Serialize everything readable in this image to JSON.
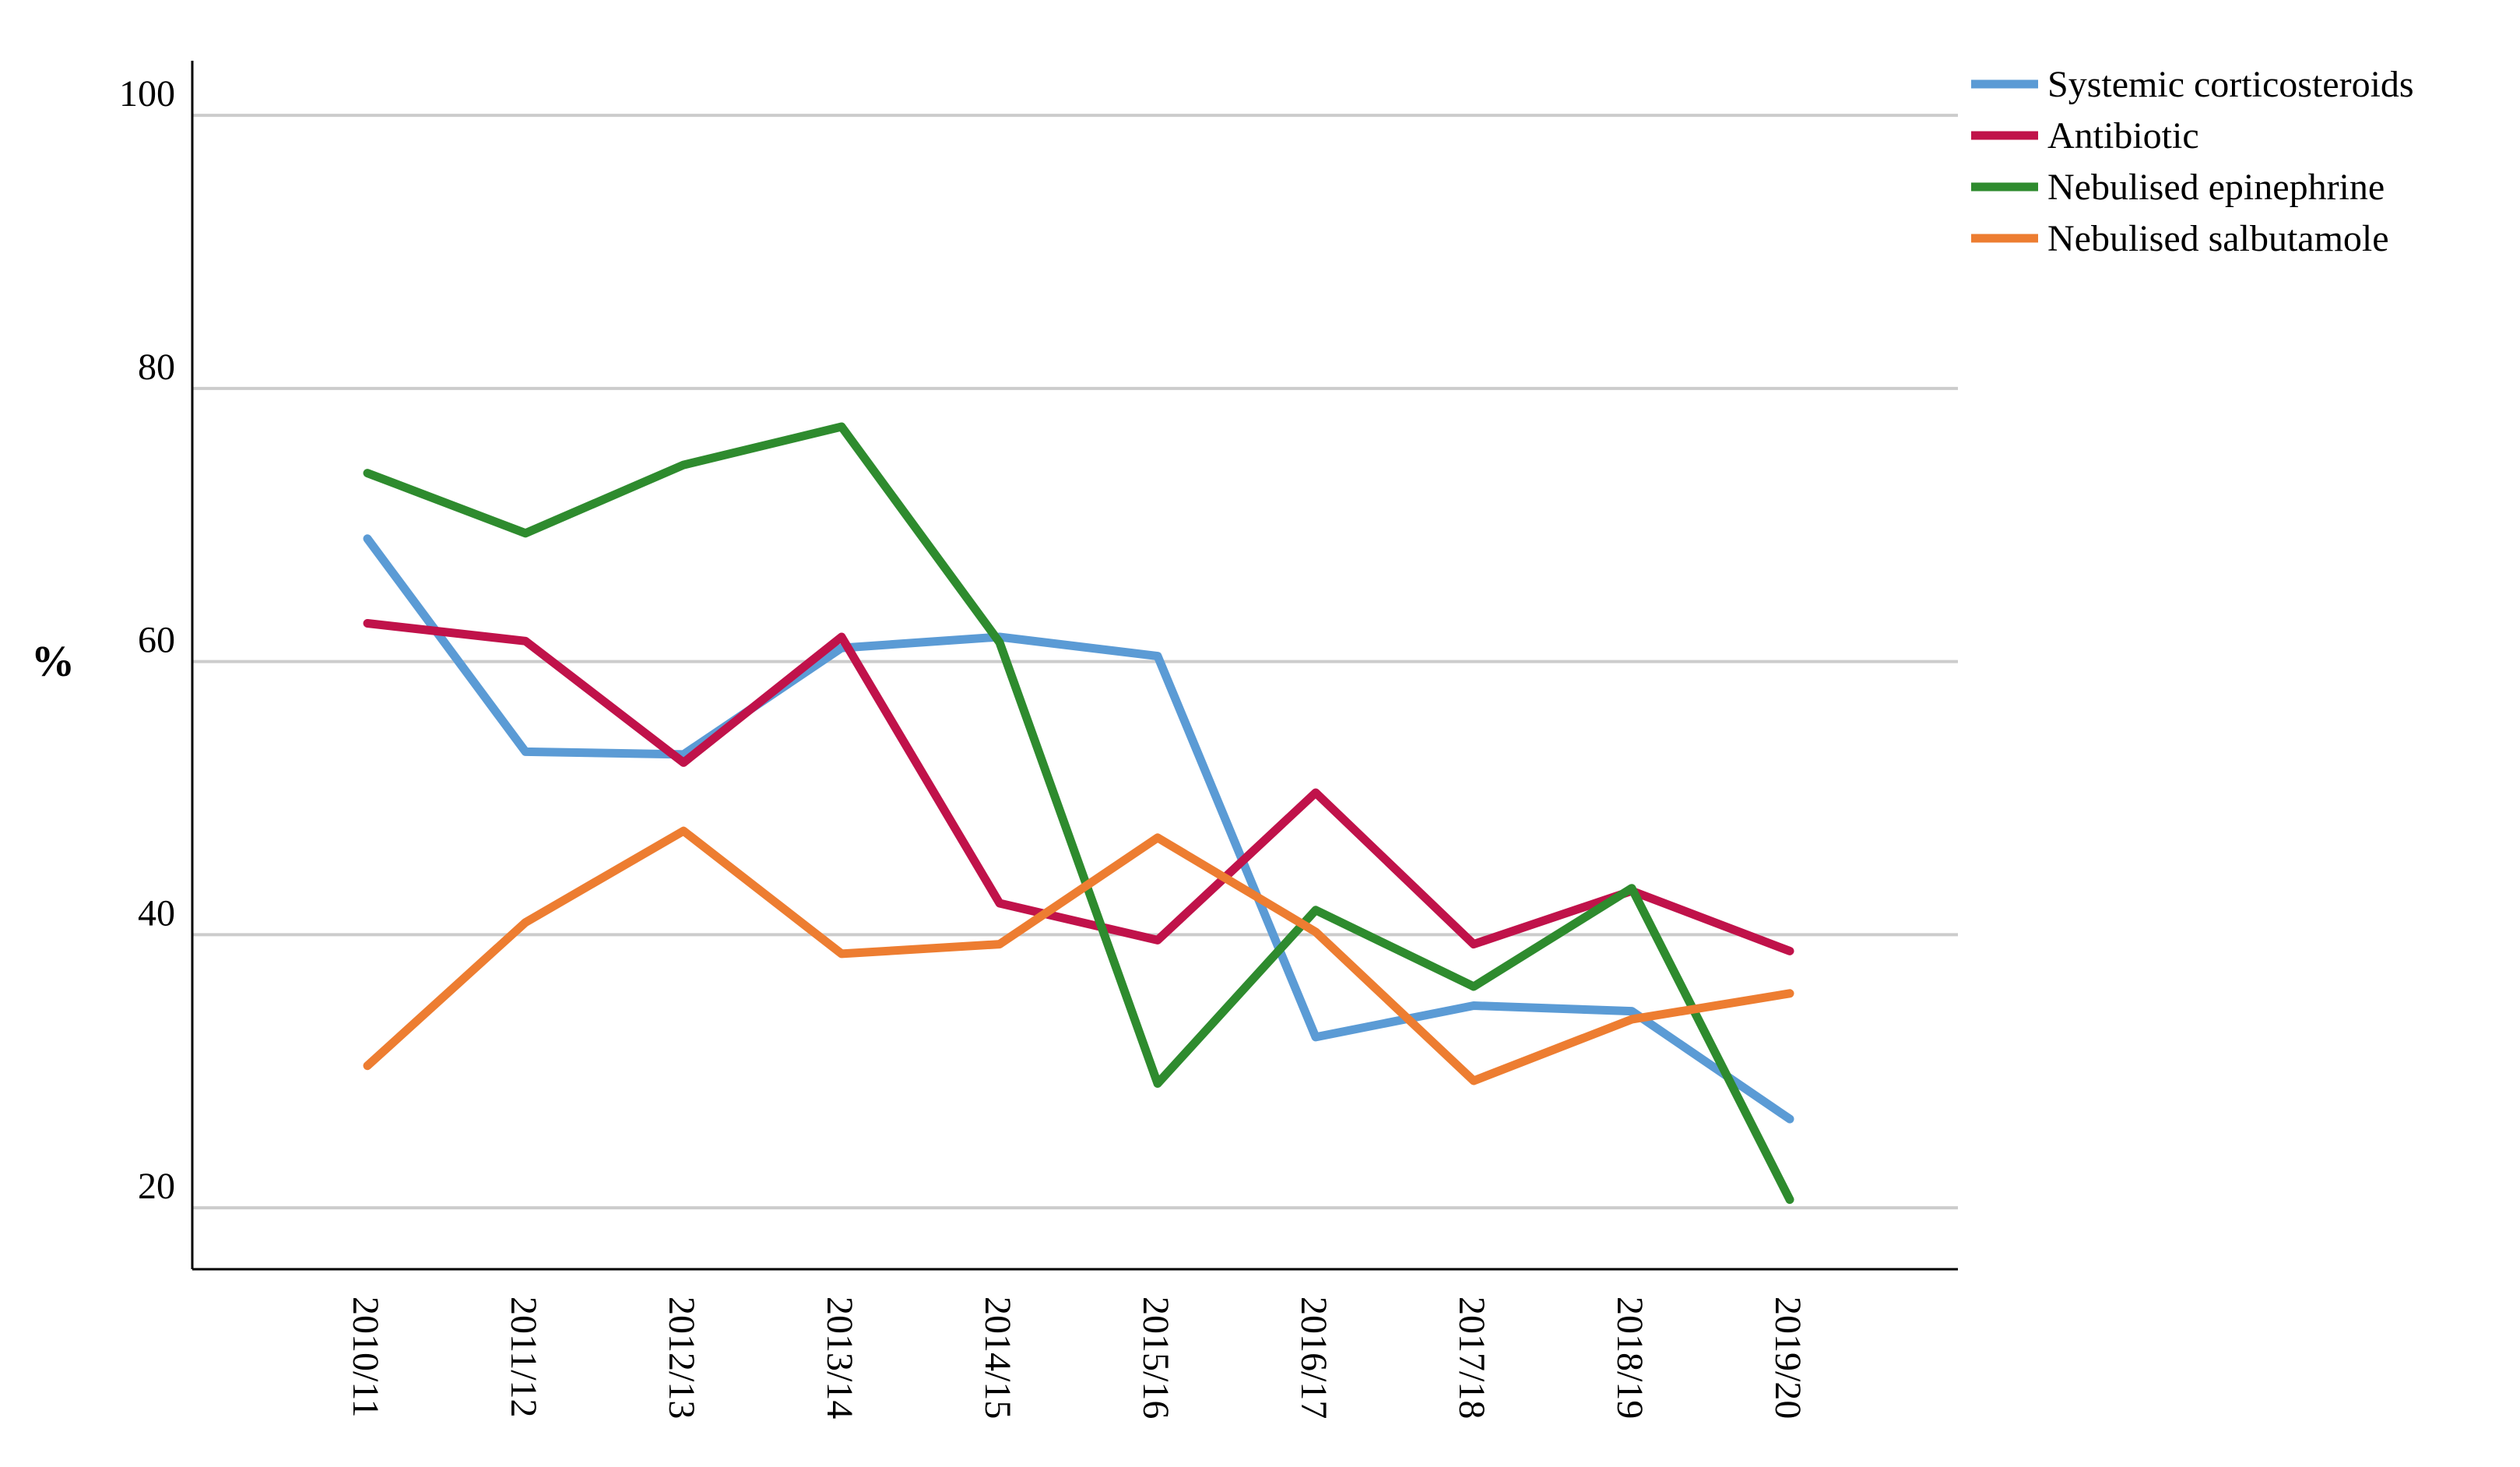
{
  "chart_data": {
    "type": "line",
    "title": "",
    "xlabel": "",
    "ylabel": "%",
    "ylim": [
      15.5,
      104
    ],
    "yticks": [
      20,
      40,
      60,
      80,
      100
    ],
    "grid": true,
    "legend_position": "top-right",
    "categories": [
      "2010/11",
      "2011/12",
      "2012/13",
      "2013/14",
      "2014/15",
      "2015/16",
      "2016/17",
      "2017/18",
      "2018/19",
      "2019/20"
    ],
    "series": [
      {
        "name": "Systemic corticosteroids",
        "color": "#5b9bd5",
        "values": [
          69,
          53.4,
          53.2,
          61,
          61.8,
          60.4,
          32.5,
          34.8,
          34.4,
          26.5
        ]
      },
      {
        "name": "Antibiotic",
        "color": "#c0124a",
        "values": [
          62.8,
          61.5,
          52.6,
          61.8,
          42.3,
          39.6,
          50.4,
          39.3,
          43.2,
          38.8
        ]
      },
      {
        "name": "Nebulised epinephrine",
        "color": "#2e8b2e",
        "values": [
          73.8,
          69.4,
          74.4,
          77.2,
          61.4,
          29.1,
          41.8,
          36.2,
          43.4,
          20.6
        ]
      },
      {
        "name": "Nebulised salbutamole",
        "color": "#ed7d31",
        "values": [
          30.4,
          40.9,
          47.6,
          38.6,
          39.3,
          47.1,
          40.2,
          29.3,
          33.8,
          35.7
        ]
      }
    ]
  }
}
